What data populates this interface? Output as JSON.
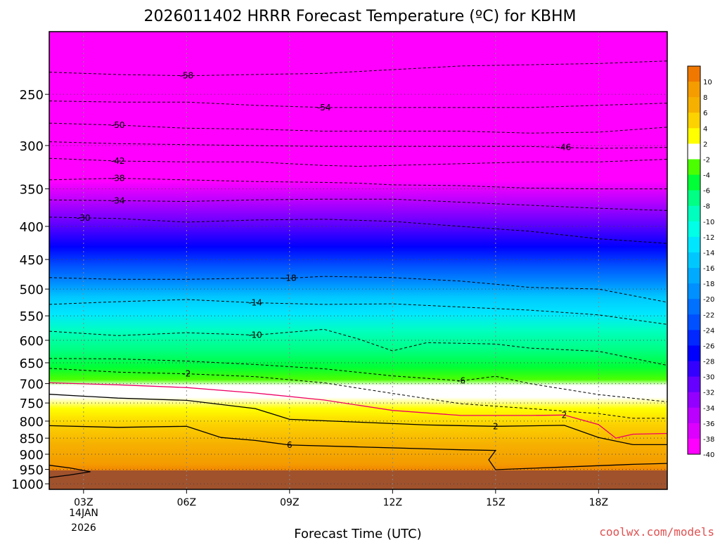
{
  "chart_data": {
    "type": "heatmap",
    "title": "2026011402 HRRR Forecast Temperature (ºC) for KBHM",
    "xlabel": "Forecast Time (UTC)",
    "ylabel": "",
    "credit": "coolwx.com/models",
    "x_ticks": [
      "03Z",
      "06Z",
      "09Z",
      "12Z",
      "15Z",
      "18Z"
    ],
    "x_date_line1": "14JAN",
    "x_date_line2": "2026",
    "x_range_hours": [
      2,
      20
    ],
    "y_ticks": [
      250,
      300,
      350,
      400,
      450,
      500,
      550,
      600,
      650,
      700,
      750,
      800,
      850,
      900,
      950,
      1000
    ],
    "y_range_hpa": [
      200,
      1020
    ],
    "y_scale": "log",
    "legend": {
      "placement": "right",
      "labels": [
        "10",
        "8",
        "6",
        "4",
        "2",
        "-2",
        "-4",
        "-6",
        "-8",
        "-10",
        "-12",
        "-14",
        "-16",
        "-18",
        "-20",
        "-22",
        "-24",
        "-26",
        "-28",
        "-30",
        "-32",
        "-34",
        "-36",
        "-38",
        "-40"
      ]
    },
    "colorbar": [
      {
        "label": "10",
        "color": "#f07800"
      },
      {
        "label": "8",
        "color": "#f49c00"
      },
      {
        "label": "6",
        "color": "#f6b000"
      },
      {
        "label": "4",
        "color": "#fcd200"
      },
      {
        "label": "2",
        "color": "#ffff00"
      },
      {
        "label": "-2",
        "color": "#ffffff"
      },
      {
        "label": "-4",
        "color": "#4cff00"
      },
      {
        "label": "-6",
        "color": "#00ff36"
      },
      {
        "label": "-8",
        "color": "#00ff84"
      },
      {
        "label": "-10",
        "color": "#00ffbf"
      },
      {
        "label": "-12",
        "color": "#00ffe6"
      },
      {
        "label": "-14",
        "color": "#00e6ff"
      },
      {
        "label": "-16",
        "color": "#00c8ff"
      },
      {
        "label": "-18",
        "color": "#00aaff"
      },
      {
        "label": "-20",
        "color": "#0090ff"
      },
      {
        "label": "-22",
        "color": "#0070ff"
      },
      {
        "label": "-24",
        "color": "#0050ff"
      },
      {
        "label": "-26",
        "color": "#0028ff"
      },
      {
        "label": "-28",
        "color": "#0000ff"
      },
      {
        "label": "-30",
        "color": "#3300ff"
      },
      {
        "label": "-32",
        "color": "#6600ff"
      },
      {
        "label": "-34",
        "color": "#9400ff"
      },
      {
        "label": "-36",
        "color": "#bb00ff"
      },
      {
        "label": "-38",
        "color": "#dd00ff"
      },
      {
        "label": "-40",
        "color": "#ff00ff"
      }
    ],
    "isotherms": [
      {
        "label": "-58",
        "style": "dashed",
        "color": "#000000",
        "label_at_hour": 6,
        "points": [
          [
            2,
            231
          ],
          [
            4,
            233
          ],
          [
            6,
            234
          ],
          [
            8,
            233
          ],
          [
            10,
            232
          ],
          [
            12,
            229
          ],
          [
            14,
            226
          ],
          [
            16,
            225
          ],
          [
            18,
            224
          ],
          [
            20,
            222
          ]
        ]
      },
      {
        "label": "-54",
        "style": "dashed",
        "color": "#000000",
        "label_at_hour": 10,
        "points": [
          [
            2,
            256
          ],
          [
            4,
            257
          ],
          [
            6,
            257
          ],
          [
            8,
            260
          ],
          [
            10,
            262
          ],
          [
            12,
            262
          ],
          [
            14,
            262
          ],
          [
            16,
            262
          ],
          [
            18,
            260
          ],
          [
            20,
            258
          ]
        ]
      },
      {
        "label": "-50",
        "style": "dashed",
        "color": "#000000",
        "label_at_hour": 4,
        "points": [
          [
            2,
            277
          ],
          [
            4,
            279
          ],
          [
            6,
            282
          ],
          [
            8,
            283
          ],
          [
            10,
            285
          ],
          [
            12,
            285
          ],
          [
            14,
            285
          ],
          [
            16,
            287
          ],
          [
            18,
            286
          ],
          [
            20,
            281
          ]
        ]
      },
      {
        "label": "-46",
        "style": "dashed",
        "color": "#000000",
        "label_at_hour": 17,
        "points": [
          [
            2,
            296
          ],
          [
            4,
            298
          ],
          [
            6,
            299
          ],
          [
            8,
            300
          ],
          [
            10,
            301
          ],
          [
            12,
            301
          ],
          [
            14,
            301
          ],
          [
            16,
            301
          ],
          [
            17,
            302
          ],
          [
            18,
            303
          ],
          [
            20,
            302
          ]
        ]
      },
      {
        "label": "-42",
        "style": "dashed",
        "color": "#000000",
        "label_at_hour": 5,
        "points": [
          [
            2,
            314
          ],
          [
            4,
            317
          ],
          [
            6,
            318
          ],
          [
            8,
            318
          ],
          [
            10,
            322
          ],
          [
            11,
            323
          ],
          [
            12,
            322
          ],
          [
            14,
            320
          ],
          [
            16,
            318
          ],
          [
            18,
            318
          ],
          [
            20,
            315
          ]
        ]
      },
      {
        "label": "-38",
        "style": "dashed",
        "color": "#000000",
        "label_at_hour": 4,
        "points": [
          [
            2,
            339
          ],
          [
            4,
            337
          ],
          [
            6,
            339
          ],
          [
            8,
            341
          ],
          [
            10,
            342
          ],
          [
            11,
            343
          ],
          [
            12,
            345
          ],
          [
            14,
            346
          ],
          [
            16,
            349
          ],
          [
            18,
            350
          ],
          [
            20,
            350
          ]
        ]
      },
      {
        "label": "-34",
        "style": "dashed",
        "color": "#000000",
        "label_at_hour": 4,
        "points": [
          [
            2,
            364
          ],
          [
            4,
            365
          ],
          [
            6,
            366
          ],
          [
            8,
            364
          ],
          [
            10,
            363
          ],
          [
            12,
            363
          ],
          [
            14,
            367
          ],
          [
            16,
            371
          ],
          [
            18,
            375
          ],
          [
            20,
            378
          ]
        ]
      },
      {
        "label": "-30",
        "style": "dashed",
        "color": "#000000",
        "label_at_hour": 3,
        "points": [
          [
            2,
            387
          ],
          [
            3,
            388
          ],
          [
            4,
            389
          ],
          [
            6,
            394
          ],
          [
            8,
            391
          ],
          [
            10,
            390
          ],
          [
            12,
            393
          ],
          [
            14,
            400
          ],
          [
            16,
            407
          ],
          [
            18,
            418
          ],
          [
            20,
            425
          ]
        ]
      },
      {
        "label": "-18",
        "style": "dashed",
        "color": "#000000",
        "label_at_hour": 9,
        "points": [
          [
            2,
            480
          ],
          [
            4,
            483
          ],
          [
            6,
            483
          ],
          [
            8,
            481
          ],
          [
            9,
            481
          ],
          [
            10,
            478
          ],
          [
            12,
            480
          ],
          [
            14,
            486
          ],
          [
            16,
            497
          ],
          [
            18,
            500
          ],
          [
            20,
            524
          ]
        ]
      },
      {
        "label": "-14",
        "style": "dashed",
        "color": "#000000",
        "label_at_hour": 8,
        "points": [
          [
            2,
            528
          ],
          [
            4,
            523
          ],
          [
            6,
            519
          ],
          [
            8,
            525
          ],
          [
            10,
            528
          ],
          [
            12,
            527
          ],
          [
            14,
            533
          ],
          [
            16,
            539
          ],
          [
            18,
            548
          ],
          [
            20,
            567
          ]
        ]
      },
      {
        "label": "-10",
        "style": "dashed",
        "color": "#000000",
        "label_at_hour": 8,
        "points": [
          [
            2,
            581
          ],
          [
            4,
            590
          ],
          [
            6,
            584
          ],
          [
            8,
            589
          ],
          [
            10,
            577
          ],
          [
            11,
            597
          ],
          [
            12,
            623
          ],
          [
            13,
            605
          ],
          [
            15,
            608
          ],
          [
            16,
            617
          ],
          [
            18,
            624
          ],
          [
            20,
            656
          ]
        ]
      },
      {
        "label": "-6",
        "style": "dashed",
        "color": "#000000",
        "label_at_hour": 14,
        "points": [
          [
            2,
            640
          ],
          [
            4,
            641
          ],
          [
            6,
            646
          ],
          [
            8,
            654
          ],
          [
            10,
            664
          ],
          [
            12,
            681
          ],
          [
            14,
            693
          ],
          [
            15,
            682
          ],
          [
            16,
            700
          ],
          [
            18,
            728
          ],
          [
            20,
            747
          ]
        ]
      },
      {
        "label": "-2",
        "style": "dashed",
        "color": "#000000",
        "label_at_hour": 6,
        "points": [
          [
            2,
            663
          ],
          [
            4,
            672
          ],
          [
            6,
            676
          ],
          [
            8,
            683
          ],
          [
            10,
            698
          ],
          [
            12,
            725
          ],
          [
            14,
            752
          ],
          [
            16,
            765
          ],
          [
            18,
            779
          ],
          [
            19,
            792
          ],
          [
            20,
            792
          ]
        ]
      },
      {
        "label": "2",
        "style": "solid",
        "color": "#ee0066",
        "label_at_hour": 17,
        "points": [
          [
            2,
            698
          ],
          [
            4,
            703
          ],
          [
            6,
            710
          ],
          [
            8,
            724
          ],
          [
            10,
            742
          ],
          [
            12,
            770
          ],
          [
            14,
            784
          ],
          [
            16,
            784
          ],
          [
            17,
            783
          ],
          [
            18,
            810
          ],
          [
            18.5,
            850
          ],
          [
            19,
            838
          ],
          [
            20,
            836
          ]
        ]
      },
      {
        "label": "2",
        "style": "solid",
        "color": "#000000",
        "label_at_hour": 15,
        "points": [
          [
            2,
            727
          ],
          [
            4,
            737
          ],
          [
            6,
            743
          ],
          [
            8,
            765
          ],
          [
            9,
            795
          ],
          [
            11,
            803
          ],
          [
            13,
            811
          ],
          [
            15,
            815
          ],
          [
            17,
            812
          ],
          [
            18,
            848
          ],
          [
            19,
            870
          ],
          [
            20,
            870
          ]
        ]
      },
      {
        "label": "6",
        "style": "solid",
        "color": "#000000",
        "label_at_hour": 9,
        "points": [
          [
            2,
            813
          ],
          [
            4,
            818
          ],
          [
            6,
            815
          ],
          [
            7,
            848
          ],
          [
            8,
            857
          ],
          [
            9,
            871
          ],
          [
            11,
            877
          ],
          [
            14,
            886
          ],
          [
            15,
            888
          ],
          [
            14.8,
            918
          ],
          [
            15,
            951
          ],
          [
            17,
            942
          ],
          [
            19,
            933
          ],
          [
            20,
            930
          ]
        ]
      },
      {
        "label": "",
        "style": "solid",
        "color": "#000000",
        "label_at_hour": -1,
        "points": [
          [
            2,
            936
          ],
          [
            2.6,
            945
          ],
          [
            3.2,
            958
          ],
          [
            2.6,
            969
          ],
          [
            2.0,
            978
          ]
        ]
      }
    ]
  }
}
